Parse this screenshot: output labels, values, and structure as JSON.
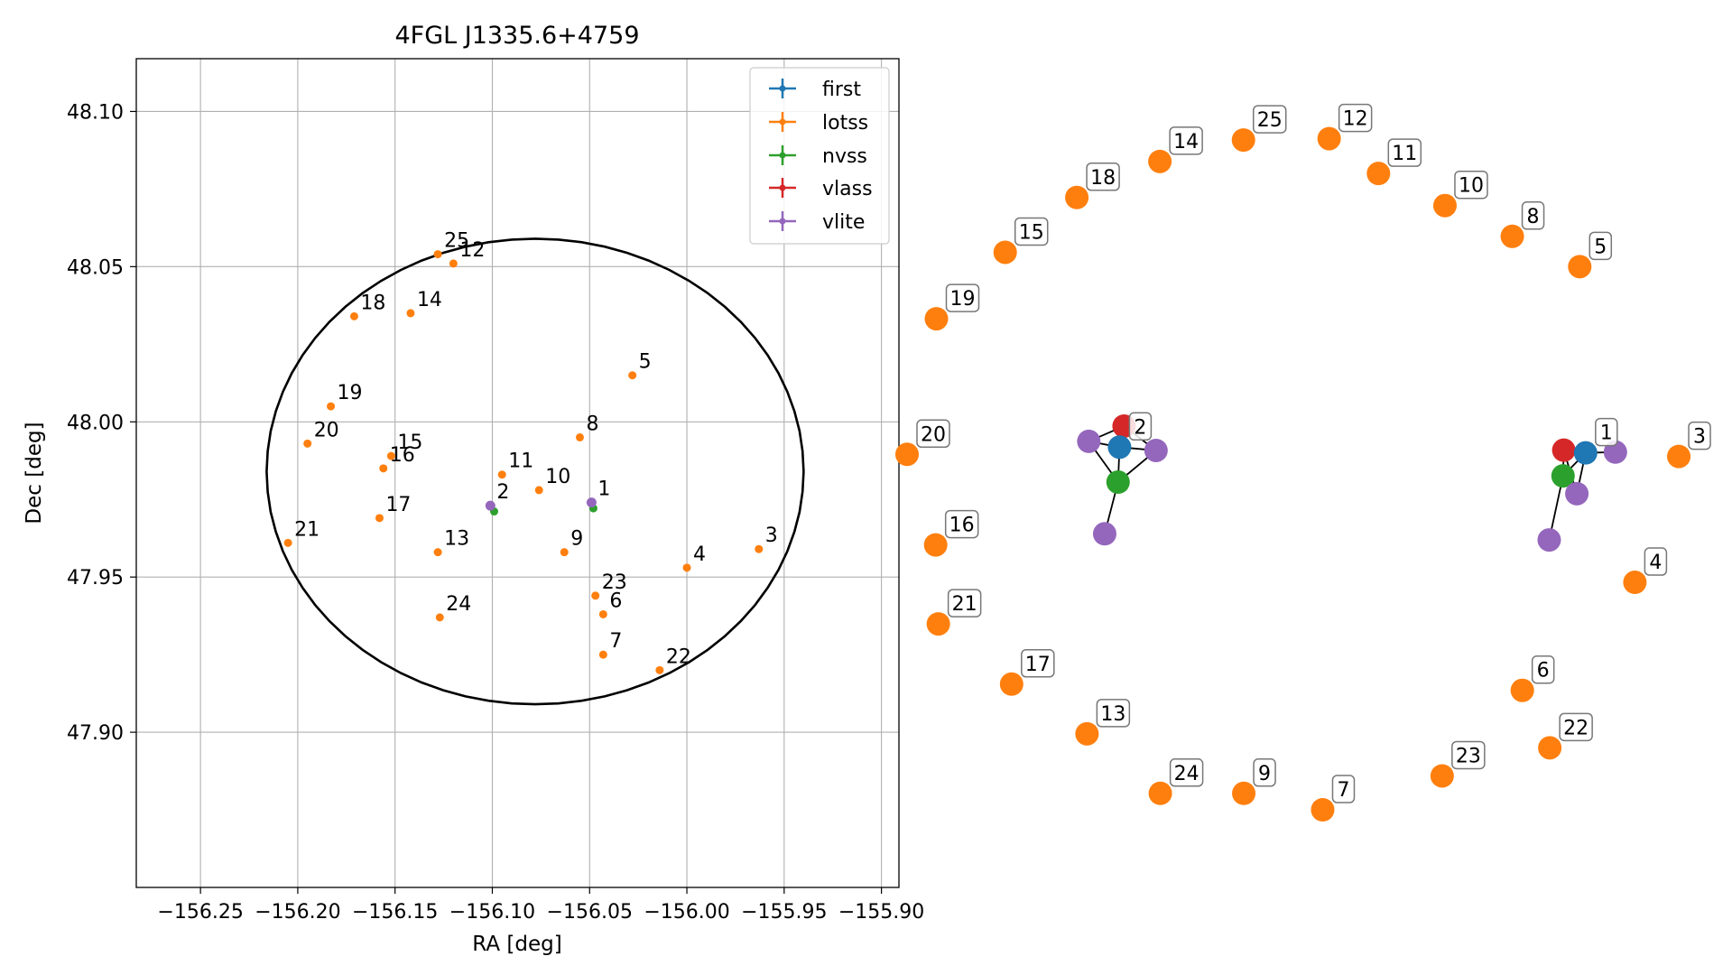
{
  "colors": {
    "first": "#1f77b4",
    "lotss": "#ff7f0e",
    "nvss": "#2ca02c",
    "vlass": "#d62728",
    "vlite": "#9467bd",
    "circle": "#000000",
    "grid": "#b0b0b0"
  },
  "chart_data": [
    {
      "type": "scatter",
      "title": "4FGL J1335.6+4759",
      "xlabel": "RA [deg]",
      "ylabel": "Dec [deg]",
      "xlim": [
        -156.283,
        -155.891
      ],
      "ylim": [
        47.85,
        48.117
      ],
      "x_ticks": [
        -156.25,
        -156.2,
        -156.15,
        -156.1,
        -156.05,
        -156.0,
        -155.95,
        -155.9
      ],
      "x_tick_labels": [
        "−156.25",
        "−156.20",
        "−156.15",
        "−156.10",
        "−156.05",
        "−156.00",
        "−155.95",
        "−155.90"
      ],
      "y_ticks": [
        47.9,
        47.95,
        48.0,
        48.05,
        48.1
      ],
      "y_tick_labels": [
        "47.90",
        "47.95",
        "48.00",
        "48.05",
        "48.10"
      ],
      "grid": true,
      "legend_position": "top-right",
      "legend": [
        "first",
        "lotss",
        "nvss",
        "vlass",
        "vlite"
      ],
      "circle": {
        "center": [
          -156.078,
          47.984
        ],
        "radius_ra": 0.138,
        "radius_dec": 0.075
      },
      "points": [
        {
          "label": "1",
          "survey": "vlite",
          "x": -156.049,
          "y": 47.974
        },
        {
          "label": "2",
          "survey": "vlite",
          "x": -156.101,
          "y": 47.973
        },
        {
          "label": "3",
          "survey": "lotss",
          "x": -155.963,
          "y": 47.959
        },
        {
          "label": "4",
          "survey": "lotss",
          "x": -156.0,
          "y": 47.953
        },
        {
          "label": "5",
          "survey": "lotss",
          "x": -156.028,
          "y": 48.015
        },
        {
          "label": "6",
          "survey": "lotss",
          "x": -156.043,
          "y": 47.938
        },
        {
          "label": "7",
          "survey": "lotss",
          "x": -156.043,
          "y": 47.925
        },
        {
          "label": "8",
          "survey": "lotss",
          "x": -156.055,
          "y": 47.995
        },
        {
          "label": "9",
          "survey": "lotss",
          "x": -156.063,
          "y": 47.958
        },
        {
          "label": "10",
          "survey": "lotss",
          "x": -156.076,
          "y": 47.978
        },
        {
          "label": "11",
          "survey": "lotss",
          "x": -156.095,
          "y": 47.983
        },
        {
          "label": "12",
          "survey": "lotss",
          "x": -156.12,
          "y": 48.051
        },
        {
          "label": "13",
          "survey": "lotss",
          "x": -156.128,
          "y": 47.958
        },
        {
          "label": "14",
          "survey": "lotss",
          "x": -156.142,
          "y": 48.035
        },
        {
          "label": "15",
          "survey": "lotss",
          "x": -156.152,
          "y": 47.989
        },
        {
          "label": "16",
          "survey": "lotss",
          "x": -156.156,
          "y": 47.985
        },
        {
          "label": "17",
          "survey": "lotss",
          "x": -156.158,
          "y": 47.969
        },
        {
          "label": "18",
          "survey": "lotss",
          "x": -156.171,
          "y": 48.034
        },
        {
          "label": "19",
          "survey": "lotss",
          "x": -156.183,
          "y": 48.005
        },
        {
          "label": "20",
          "survey": "lotss",
          "x": -156.195,
          "y": 47.993
        },
        {
          "label": "21",
          "survey": "lotss",
          "x": -156.205,
          "y": 47.961
        },
        {
          "label": "22",
          "survey": "lotss",
          "x": -156.014,
          "y": 47.92
        },
        {
          "label": "23",
          "survey": "lotss",
          "x": -156.047,
          "y": 47.944
        },
        {
          "label": "24",
          "survey": "lotss",
          "x": -156.127,
          "y": 47.937
        },
        {
          "label": "25",
          "survey": "lotss",
          "x": -156.128,
          "y": 48.054
        }
      ],
      "extra_points": [
        {
          "survey": "nvss",
          "x": -156.1,
          "y": 47.972
        },
        {
          "survey": "nvss",
          "x": -156.049,
          "y": 47.973
        }
      ]
    },
    {
      "type": "network",
      "nodes": [
        {
          "label": "25",
          "survey": "lotss",
          "x": 0.29,
          "y": 0.8886
        },
        {
          "label": "12",
          "survey": "lotss",
          "x": 0.4053,
          "y": 0.8909
        },
        {
          "label": "14",
          "survey": "lotss",
          "x": 0.1775,
          "y": 0.8522
        },
        {
          "label": "11",
          "survey": "lotss",
          "x": 0.4717,
          "y": 0.8318
        },
        {
          "label": "18",
          "survey": "lotss",
          "x": 0.0657,
          "y": 0.791
        },
        {
          "label": "10",
          "survey": "lotss",
          "x": 0.5612,
          "y": 0.7773
        },
        {
          "label": "8",
          "survey": "lotss",
          "x": 0.6518,
          "y": 0.725
        },
        {
          "label": "15",
          "survey": "lotss",
          "x": -0.0307,
          "y": 0.6979
        },
        {
          "label": "5",
          "survey": "lotss",
          "x": 0.7426,
          "y": 0.6736
        },
        {
          "label": "19",
          "survey": "lotss",
          "x": -0.1233,
          "y": 0.5851
        },
        {
          "label": "20",
          "survey": "lotss",
          "x": -0.1628,
          "y": 0.3549
        },
        {
          "label": "3",
          "survey": "lotss",
          "x": 0.8759,
          "y": 0.3513
        },
        {
          "label": "16",
          "survey": "lotss",
          "x": -0.1243,
          "y": 0.2011
        },
        {
          "label": "4",
          "survey": "lotss",
          "x": 0.8168,
          "y": 0.1376
        },
        {
          "label": "21",
          "survey": "lotss",
          "x": -0.1207,
          "y": 0.067
        },
        {
          "label": "17",
          "survey": "lotss",
          "x": -0.0221,
          "y": -0.0352
        },
        {
          "label": "6",
          "survey": "lotss",
          "x": 0.6653,
          "y": -0.0458
        },
        {
          "label": "13",
          "survey": "lotss",
          "x": 0.0794,
          "y": -0.1196
        },
        {
          "label": "22",
          "survey": "lotss",
          "x": 0.7023,
          "y": -0.1434
        },
        {
          "label": "23",
          "survey": "lotss",
          "x": 0.5574,
          "y": -0.1911
        },
        {
          "label": "24",
          "survey": "lotss",
          "x": 0.1781,
          "y": -0.2207
        },
        {
          "label": "9",
          "survey": "lotss",
          "x": 0.2904,
          "y": -0.2207
        },
        {
          "label": "7",
          "survey": "lotss",
          "x": 0.3966,
          "y": -0.2486
        },
        {
          "label": "2",
          "survey": "first",
          "x": 0.1232,
          "y": 0.3671
        },
        {
          "label": "1",
          "survey": "first",
          "x": 0.7505,
          "y": 0.3574
        }
      ],
      "satellites": [
        {
          "id": "a1",
          "survey": "vlass",
          "x": 0.1293,
          "y": 0.4029
        },
        {
          "id": "a2",
          "survey": "vlite",
          "x": 0.0818,
          "y": 0.3769
        },
        {
          "id": "a3",
          "survey": "vlite",
          "x": 0.1723,
          "y": 0.3615
        },
        {
          "id": "a4",
          "survey": "nvss",
          "x": 0.1212,
          "y": 0.3078
        },
        {
          "id": "a5",
          "survey": "vlite",
          "x": 0.1032,
          "y": 0.22
        },
        {
          "id": "b1",
          "survey": "vlass",
          "x": 0.7211,
          "y": 0.362
        },
        {
          "id": "b2",
          "survey": "vlite",
          "x": 0.7906,
          "y": 0.3587
        },
        {
          "id": "b3",
          "survey": "nvss",
          "x": 0.7201,
          "y": 0.3183
        },
        {
          "id": "b4",
          "survey": "vlite",
          "x": 0.7387,
          "y": 0.2881
        },
        {
          "id": "b5",
          "survey": "vlite",
          "x": 0.7015,
          "y": 0.2096
        }
      ],
      "edges": [
        [
          "2",
          "a1"
        ],
        [
          "2",
          "a2"
        ],
        [
          "2",
          "a3"
        ],
        [
          "2",
          "a4"
        ],
        [
          "a4",
          "a5"
        ],
        [
          "a1",
          "a2"
        ],
        [
          "a1",
          "a3"
        ],
        [
          "a2",
          "a4"
        ],
        [
          "a3",
          "a4"
        ],
        [
          "1",
          "b1"
        ],
        [
          "1",
          "b2"
        ],
        [
          "1",
          "b3"
        ],
        [
          "1",
          "b4"
        ],
        [
          "b3",
          "b5"
        ],
        [
          "b1",
          "b3"
        ],
        [
          "b1",
          "b4"
        ],
        [
          "b3",
          "b4"
        ]
      ]
    }
  ]
}
